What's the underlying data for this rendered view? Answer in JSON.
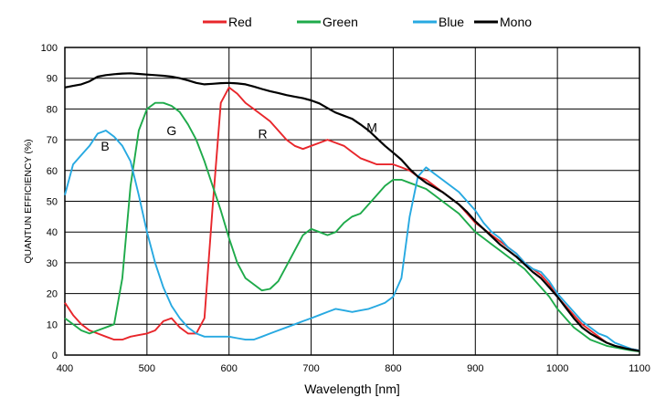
{
  "chart_data": {
    "type": "line",
    "title": "",
    "xlabel": "Wavelength [nm]",
    "ylabel": "QUANTUN EFFICIENCY (%)",
    "xlim": [
      400,
      1100
    ],
    "ylim": [
      0,
      100
    ],
    "xticks": [
      "400",
      "500",
      "600",
      "700",
      "800",
      "900",
      "1000",
      "1100"
    ],
    "yticks": [
      "0",
      "10",
      "20",
      "30",
      "40",
      "50",
      "60",
      "70",
      "80",
      "90",
      "100"
    ],
    "grid": true,
    "legend_position": "top",
    "series": [
      {
        "name": "Red",
        "color": "#e8262b",
        "x": [
          400,
          410,
          420,
          430,
          440,
          450,
          460,
          470,
          480,
          490,
          500,
          510,
          520,
          530,
          540,
          550,
          560,
          570,
          580,
          590,
          600,
          610,
          620,
          630,
          640,
          650,
          660,
          670,
          680,
          690,
          700,
          710,
          720,
          730,
          740,
          750,
          760,
          770,
          780,
          790,
          800,
          810,
          820,
          830,
          840,
          850,
          860,
          870,
          880,
          890,
          900,
          910,
          920,
          930,
          940,
          950,
          960,
          970,
          980,
          990,
          1000,
          1010,
          1020,
          1030,
          1040,
          1050,
          1060,
          1070,
          1080,
          1090,
          1100
        ],
        "values": [
          17,
          13,
          10,
          8,
          7,
          6,
          5,
          5,
          6,
          6.5,
          7,
          8,
          11,
          12,
          9,
          7,
          7,
          12,
          48,
          82,
          87,
          85,
          82,
          80,
          78,
          76,
          73,
          70,
          68,
          67,
          68,
          69,
          70,
          69,
          68,
          66,
          64,
          63,
          62,
          62,
          62,
          61,
          60,
          58,
          57,
          55,
          53,
          51,
          49,
          46,
          43,
          41,
          39,
          37,
          35,
          33,
          30,
          28,
          26,
          23,
          19,
          16,
          13,
          10,
          8,
          6,
          4,
          3,
          2.5,
          2,
          1.5
        ]
      },
      {
        "name": "Green",
        "color": "#1eaa4a",
        "x": [
          400,
          410,
          420,
          430,
          440,
          450,
          460,
          470,
          480,
          490,
          500,
          510,
          520,
          530,
          540,
          550,
          560,
          570,
          580,
          590,
          600,
          610,
          620,
          630,
          640,
          650,
          660,
          670,
          680,
          690,
          700,
          710,
          720,
          730,
          740,
          750,
          760,
          770,
          780,
          790,
          800,
          810,
          820,
          830,
          840,
          850,
          860,
          870,
          880,
          890,
          900,
          910,
          920,
          930,
          940,
          950,
          960,
          970,
          980,
          990,
          1000,
          1010,
          1020,
          1030,
          1040,
          1050,
          1060,
          1070,
          1080,
          1090,
          1100
        ],
        "values": [
          12,
          10,
          8,
          7,
          8,
          9,
          10,
          25,
          55,
          73,
          80,
          82,
          82,
          81,
          79,
          75,
          70,
          63,
          55,
          47,
          38,
          30,
          25,
          23,
          21,
          21.5,
          24,
          29,
          34,
          39,
          41,
          40,
          39,
          40,
          43,
          45,
          46,
          49,
          52,
          55,
          57,
          57,
          56,
          55,
          54,
          52,
          50,
          48,
          46,
          43,
          40,
          38,
          36,
          34,
          32,
          30,
          28,
          25,
          22,
          19,
          15,
          12,
          9,
          7,
          5,
          4,
          3,
          2.5,
          2,
          1.5,
          1.2
        ]
      },
      {
        "name": "Blue",
        "color": "#27a9e1",
        "x": [
          400,
          410,
          420,
          430,
          440,
          450,
          460,
          470,
          480,
          490,
          500,
          510,
          520,
          530,
          540,
          550,
          560,
          570,
          580,
          590,
          600,
          610,
          620,
          630,
          640,
          650,
          660,
          670,
          680,
          690,
          700,
          710,
          720,
          730,
          740,
          750,
          760,
          770,
          780,
          790,
          800,
          810,
          820,
          830,
          840,
          850,
          860,
          870,
          880,
          890,
          900,
          910,
          920,
          930,
          940,
          950,
          960,
          970,
          980,
          990,
          1000,
          1010,
          1020,
          1030,
          1040,
          1050,
          1060,
          1070,
          1080,
          1090,
          1100
        ],
        "values": [
          52,
          62,
          65,
          68,
          72,
          73,
          71,
          68,
          63,
          52,
          40,
          30,
          22,
          16,
          12,
          9,
          7,
          6,
          6,
          6,
          6,
          5.5,
          5,
          5,
          6,
          7,
          8,
          9,
          10,
          11,
          12,
          13,
          14,
          15,
          14.5,
          14,
          14.5,
          15,
          16,
          17,
          19,
          25,
          45,
          58,
          61,
          59,
          57,
          55,
          53,
          50,
          47,
          43,
          40,
          38,
          35,
          33,
          30,
          28,
          27,
          24,
          20,
          17,
          14,
          11,
          9,
          7,
          6,
          4,
          3,
          2,
          1.5
        ]
      },
      {
        "name": "Mono",
        "color": "#000000",
        "x": [
          400,
          410,
          420,
          430,
          440,
          450,
          460,
          470,
          480,
          490,
          500,
          510,
          520,
          530,
          540,
          550,
          560,
          570,
          580,
          590,
          600,
          610,
          620,
          630,
          640,
          650,
          660,
          670,
          680,
          690,
          700,
          710,
          720,
          730,
          740,
          750,
          760,
          770,
          780,
          790,
          800,
          810,
          820,
          830,
          840,
          850,
          860,
          870,
          880,
          890,
          900,
          910,
          920,
          930,
          940,
          950,
          960,
          970,
          980,
          990,
          1000,
          1010,
          1020,
          1030,
          1040,
          1050,
          1060,
          1070,
          1080,
          1090,
          1100
        ],
        "values": [
          87,
          87.5,
          88,
          89,
          90.5,
          91,
          91.3,
          91.5,
          91.6,
          91.4,
          91.2,
          91,
          90.8,
          90.5,
          90,
          89.3,
          88.5,
          88,
          88.2,
          88.4,
          88.5,
          88.3,
          88,
          87.3,
          86.5,
          85.8,
          85.2,
          84.5,
          84,
          83.5,
          82.8,
          81.8,
          80.3,
          78.8,
          77.8,
          76.8,
          75,
          73,
          70.5,
          68,
          65.8,
          63.5,
          60.5,
          58,
          56,
          54.5,
          53,
          51,
          49,
          46.5,
          43.5,
          41,
          38.5,
          36,
          34,
          32,
          29.5,
          27,
          25,
          22,
          19,
          15.5,
          12,
          9,
          7,
          5.5,
          4,
          3,
          2.3,
          1.8,
          1.3
        ]
      }
    ],
    "annotations": [
      {
        "text": "B",
        "x": 449,
        "y": 68
      },
      {
        "text": "G",
        "x": 530,
        "y": 73
      },
      {
        "text": "R",
        "x": 641,
        "y": 72
      },
      {
        "text": "M",
        "x": 774,
        "y": 74
      }
    ]
  }
}
